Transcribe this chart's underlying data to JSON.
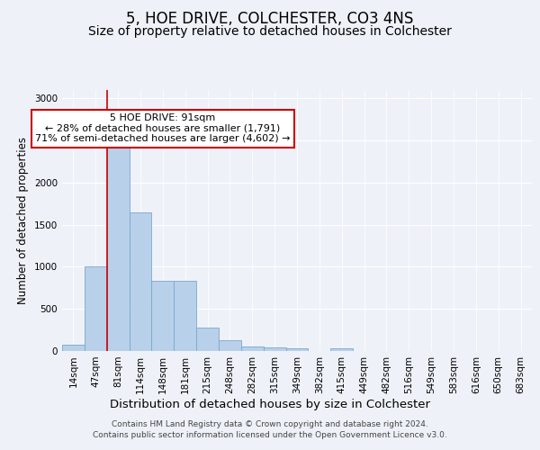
{
  "title": "5, HOE DRIVE, COLCHESTER, CO3 4NS",
  "subtitle": "Size of property relative to detached houses in Colchester",
  "xlabel": "Distribution of detached houses by size in Colchester",
  "ylabel": "Number of detached properties",
  "bin_labels": [
    "14sqm",
    "47sqm",
    "81sqm",
    "114sqm",
    "148sqm",
    "181sqm",
    "215sqm",
    "248sqm",
    "282sqm",
    "315sqm",
    "349sqm",
    "382sqm",
    "415sqm",
    "449sqm",
    "482sqm",
    "516sqm",
    "549sqm",
    "583sqm",
    "616sqm",
    "650sqm",
    "683sqm"
  ],
  "bar_values": [
    75,
    1000,
    2470,
    1650,
    830,
    830,
    275,
    130,
    50,
    40,
    35,
    0,
    35,
    0,
    0,
    0,
    0,
    0,
    0,
    0,
    0
  ],
  "bar_color": "#b8d0ea",
  "bar_edge_color": "#7aa8cc",
  "vline_color": "#cc0000",
  "annotation_text": "5 HOE DRIVE: 91sqm\n← 28% of detached houses are smaller (1,791)\n71% of semi-detached houses are larger (4,602) →",
  "annotation_box_color": "#ffffff",
  "annotation_box_edge": "#cc0000",
  "ylim": [
    0,
    3100
  ],
  "yticks": [
    0,
    500,
    1000,
    1500,
    2000,
    2500,
    3000
  ],
  "background_color": "#eef2f8",
  "grid_color": "#ffffff",
  "footer_text": "Contains HM Land Registry data © Crown copyright and database right 2024.\nContains public sector information licensed under the Open Government Licence v3.0.",
  "title_fontsize": 12,
  "subtitle_fontsize": 10,
  "xlabel_fontsize": 9.5,
  "ylabel_fontsize": 8.5,
  "tick_fontsize": 7.5,
  "annotation_fontsize": 8,
  "footer_fontsize": 6.5
}
